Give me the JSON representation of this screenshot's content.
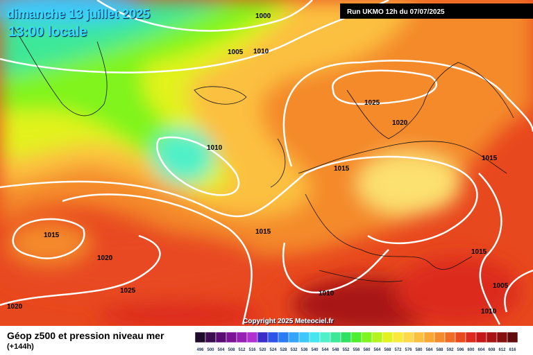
{
  "header": {
    "date": "dimanche 13 juillet 2025",
    "time": "13:00 locale",
    "run": "Run UKMO 12h du 07/07/2025"
  },
  "isobar_labels": [
    1000,
    1005,
    1010,
    1025,
    1020,
    1010,
    1015,
    1015,
    1015,
    1015,
    1020,
    1015,
    1025,
    1010,
    1005,
    1020,
    1010
  ],
  "copyright": "Copyright 2025 Meteociel.fr",
  "footer": {
    "title": "Géop z500 et pression niveau mer",
    "subtitle": "(+144h)"
  },
  "scale": {
    "labels": [
      496,
      500,
      504,
      508,
      512,
      516,
      520,
      524,
      528,
      532,
      536,
      540,
      544,
      548,
      552,
      556,
      560,
      564,
      568,
      572,
      576,
      580,
      584,
      588,
      592,
      596,
      600,
      604,
      608,
      612,
      616
    ],
    "colors": [
      "#1e0a2a",
      "#3c0c50",
      "#5a0c74",
      "#7a1494",
      "#9620b4",
      "#b030d0",
      "#3a2cc8",
      "#2c54e6",
      "#2a7cf4",
      "#34a4fc",
      "#3cc8fc",
      "#46e6f0",
      "#50f0c8",
      "#3ce898",
      "#30e060",
      "#4cee30",
      "#80f41e",
      "#b4f41e",
      "#e2f21e",
      "#f8ea3c",
      "#fcd84a",
      "#fcc040",
      "#f8a634",
      "#f48a2c",
      "#ee6c26",
      "#e84a20",
      "#dc2a1c",
      "#c41818",
      "#a81414",
      "#861010",
      "#600c0c"
    ]
  }
}
